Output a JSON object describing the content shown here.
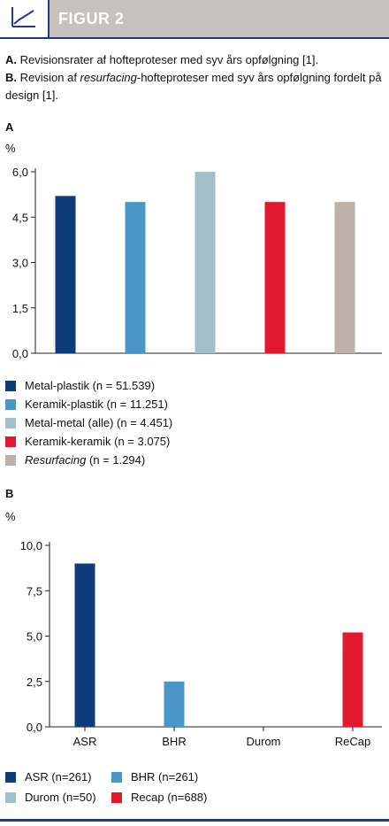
{
  "header": {
    "title": "FIGUR 2",
    "icon": "line-chart-icon"
  },
  "caption": {
    "a_prefix": "A.",
    "a_text": "Revisionsrater af hofteproteser med syv års opfølgning [1].",
    "b_prefix": "B.",
    "b_text_before": "Revision af ",
    "b_text_italic": "resurfacing",
    "b_text_after": "-hofteproteser med syv års opfølgning fordelt på design [1]."
  },
  "chart_data": [
    {
      "panel": "A",
      "type": "bar",
      "ylabel": "%",
      "ylim": [
        0,
        6
      ],
      "yticks": [
        "0,0",
        "1,5",
        "3,0",
        "4,5",
        "6,0"
      ],
      "categories": [
        "Metal-plastik",
        "Keramik-plastik",
        "Metal-metal (alle)",
        "Keramik-keramik",
        "Resurfacing"
      ],
      "values": [
        5.2,
        5.0,
        6.0,
        5.0,
        5.0
      ],
      "colors": [
        "#0d3c7a",
        "#4a96c9",
        "#a3bdc9",
        "#e0192f",
        "#bcb2aa"
      ],
      "legend": [
        {
          "label": "Metal-plastik (n = 51.539)",
          "italic": false
        },
        {
          "label": "Keramik-plastik (n = 11.251)",
          "italic": false
        },
        {
          "label": "Metal-metal (alle) (n = 4.451)",
          "italic": false
        },
        {
          "label": "Keramik-keramik (n = 3.075)",
          "italic": false
        },
        {
          "label_italic": "Resurfacing",
          "label_rest": " (n = 1.294)",
          "italic": true
        }
      ]
    },
    {
      "panel": "B",
      "type": "bar",
      "ylabel": "%",
      "ylim": [
        0,
        10
      ],
      "yticks": [
        "0,0",
        "2,5",
        "5,0",
        "7,5",
        "10,0"
      ],
      "categories": [
        "ASR",
        "BHR",
        "Durom",
        "ReCap"
      ],
      "values": [
        9.0,
        2.5,
        0.0,
        5.2
      ],
      "colors": [
        "#0d3c7a",
        "#4a96c9",
        "#a3bdc9",
        "#e0192f"
      ],
      "legend": [
        "ASR (n=261)",
        "BHR (n=261)",
        "Durom (n=50)",
        "Recap (n=688)"
      ]
    }
  ]
}
